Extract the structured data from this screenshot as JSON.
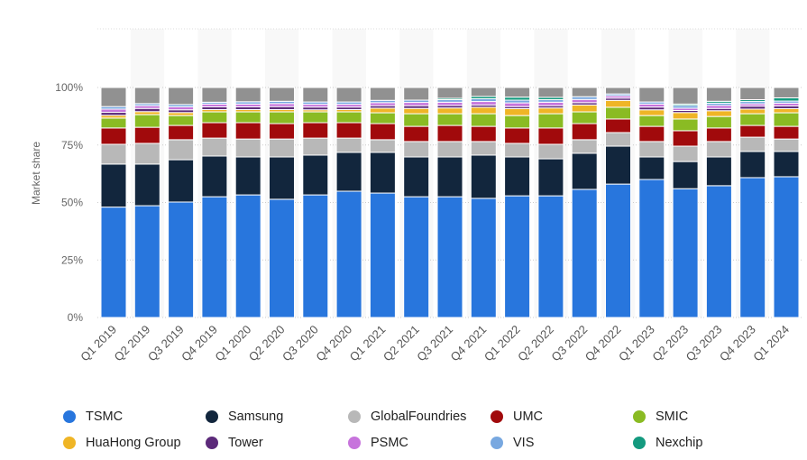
{
  "chart_data": {
    "type": "bar",
    "stacked": true,
    "title": "",
    "xlabel": "",
    "ylabel": "Market share",
    "ylim": [
      0,
      100
    ],
    "yticks": [
      "0%",
      "25%",
      "50%",
      "75%",
      "100%"
    ],
    "ytick_values": [
      0,
      25,
      50,
      75,
      100
    ],
    "grid": true,
    "legend_position": "bottom",
    "categories": [
      "Q1 2019",
      "Q2 2019",
      "Q3 2019",
      "Q4 2019",
      "Q1 2020",
      "Q2 2020",
      "Q3 2020",
      "Q4 2020",
      "Q1 2021",
      "Q2 2021",
      "Q3 2021",
      "Q4 2021",
      "Q1 2022",
      "Q2 2022",
      "Q3 2022",
      "Q4 2022",
      "Q1 2023",
      "Q2 2023",
      "Q3 2023",
      "Q4 2023",
      "Q1 2024"
    ],
    "series": [
      {
        "name": "TSMC",
        "color": "#2876dd",
        "values": [
          48,
          48.6,
          50.2,
          52.5,
          53.3,
          51.4,
          53.3,
          54.9,
          54.1,
          52.5,
          52.5,
          51.8,
          52.9,
          52.9,
          55.7,
          58,
          60,
          56,
          57.3,
          60.8,
          61.2
        ]
      },
      {
        "name": "Samsung",
        "color": "#12263d",
        "values": [
          18.7,
          18.1,
          18.4,
          17.7,
          16.5,
          18.4,
          17.3,
          16.9,
          17.7,
          17.3,
          17.3,
          18.8,
          16.9,
          16.1,
          15.7,
          16.5,
          9.8,
          11.8,
          12.5,
          11.4,
          11.0
        ]
      },
      {
        "name": "GlobalFoundries",
        "color": "#b8b8b8",
        "values": [
          8.6,
          9.0,
          8.7,
          7.8,
          7.8,
          7.8,
          7.4,
          6.2,
          5.5,
          6.7,
          6.7,
          5.9,
          5.9,
          6.3,
          5.9,
          5.9,
          6.7,
          6.7,
          6.7,
          6.2,
          5.4
        ]
      },
      {
        "name": "UMC",
        "color": "#a10a0c",
        "values": [
          7.1,
          7.0,
          6.2,
          6.7,
          7.1,
          6.7,
          6.7,
          6.7,
          7.0,
          6.6,
          7.0,
          6.6,
          6.7,
          7.1,
          7.0,
          5.9,
          6.6,
          6.7,
          5.9,
          5.1,
          5.5
        ]
      },
      {
        "name": "SMIC",
        "color": "#8abb23",
        "values": [
          4.3,
          5.5,
          4.3,
          4.7,
          4.7,
          5.1,
          4.7,
          4.7,
          4.7,
          5.5,
          5.1,
          5.5,
          5.4,
          6.2,
          5.1,
          5.1,
          4.7,
          5.1,
          5.0,
          5.1,
          5.9
        ]
      },
      {
        "name": "HuaHong Group",
        "color": "#efb526",
        "values": [
          1.2,
          1.3,
          1.3,
          1.0,
          1.0,
          1.0,
          0.9,
          1.0,
          2.0,
          2.3,
          2.5,
          2.8,
          3.0,
          2.5,
          3.0,
          3.0,
          2.5,
          2.8,
          2.5,
          2.0,
          1.8
        ]
      },
      {
        "name": "Tower",
        "color": "#5c2a7a",
        "values": [
          1.3,
          1.4,
          1.2,
          1.2,
          1.2,
          1.3,
          1.2,
          1.1,
          1.1,
          1.2,
          1.1,
          1.0,
          0.9,
          1.0,
          1.0,
          1.0,
          1.2,
          0.9,
          1.0,
          1.3,
          1.2
        ]
      },
      {
        "name": "PSMC",
        "color": "#c774dc",
        "values": [
          1.4,
          1.2,
          1.3,
          1.2,
          1.2,
          1.3,
          1.2,
          1.2,
          1.3,
          1.4,
          1.4,
          1.5,
          1.6,
          1.5,
          1.4,
          1.0,
          1.3,
          1.0,
          1.3,
          1.0,
          1.2
        ]
      },
      {
        "name": "VIS",
        "color": "#78a8e0",
        "values": [
          1.1,
          0.9,
          1.0,
          0.8,
          1.0,
          1.0,
          1.0,
          1.0,
          1.0,
          1.0,
          1.1,
          1.2,
          1.2,
          1.1,
          1.2,
          0.8,
          0.9,
          1.2,
          1.0,
          1.0,
          0.9
        ]
      },
      {
        "name": "Nexchip",
        "color": "#149a7f",
        "values": [
          0,
          0,
          0,
          0,
          0,
          0,
          0,
          0,
          0,
          0,
          0.6,
          1.0,
          1.3,
          1.0,
          0,
          0,
          0,
          0.6,
          0.8,
          0.8,
          1.4
        ]
      }
    ],
    "unlabeled_series": [
      {
        "color": "#919191",
        "values": [
          8.3,
          7.0,
          7.4,
          6.4,
          6.2,
          6.0,
          6.3,
          6.3,
          5.6,
          5.5,
          4.7,
          3.9,
          4.2,
          4.3,
          4.0,
          2.8,
          6.3,
          7.2,
          6.0,
          5.3,
          4.5
        ]
      }
    ]
  }
}
